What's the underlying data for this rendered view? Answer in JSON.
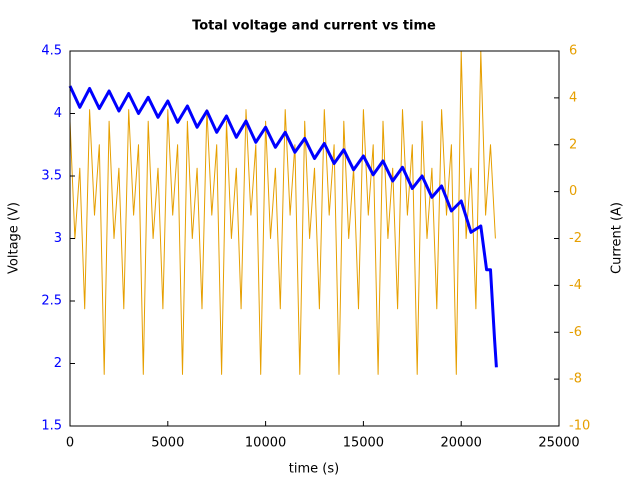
{
  "chart_data": {
    "type": "line",
    "title": "Total voltage and current vs time",
    "x_label": "time (s)",
    "y_label": "Voltage (V)",
    "y2_label": "Current (A)",
    "xlim": [
      0,
      25000
    ],
    "xticks": [
      0,
      5000,
      10000,
      15000,
      20000,
      25000
    ],
    "ylim": [
      1.5,
      4.5
    ],
    "yticks": [
      1.5,
      2,
      2.5,
      3,
      3.5,
      4,
      4.5
    ],
    "y2lim": [
      -10,
      6
    ],
    "y2ticks": [
      -10,
      -8,
      -6,
      -4,
      -2,
      0,
      2,
      4,
      6
    ],
    "series": [
      {
        "name": "Current",
        "color": "#e69f00",
        "axis": "y2",
        "x": [
          0,
          250,
          500,
          750,
          1000,
          1250,
          1500,
          1750,
          2000,
          2250,
          2500,
          2750,
          3000,
          3250,
          3500,
          3750,
          4000,
          4250,
          4500,
          4750,
          5000,
          5250,
          5500,
          5750,
          6000,
          6250,
          6500,
          6750,
          7000,
          7250,
          7500,
          7750,
          8000,
          8250,
          8500,
          8750,
          9000,
          9250,
          9500,
          9750,
          10000,
          10250,
          10500,
          10750,
          11000,
          11250,
          11500,
          11750,
          12000,
          12250,
          12500,
          12750,
          13000,
          13250,
          13500,
          13750,
          14000,
          14250,
          14500,
          14750,
          15000,
          15250,
          15500,
          15750,
          16000,
          16250,
          16500,
          16750,
          17000,
          17250,
          17500,
          17750,
          18000,
          18250,
          18500,
          18750,
          19000,
          19250,
          19500,
          19750,
          20000,
          20250,
          20500,
          20750,
          21000,
          21250,
          21500,
          21750
        ],
        "values": [
          3,
          -2,
          1,
          -5,
          3.5,
          -1,
          2,
          -7.8,
          3,
          -2,
          1,
          -5,
          3.5,
          -1,
          2,
          -7.8,
          3,
          -2,
          1,
          -5,
          3.5,
          -1,
          2,
          -7.8,
          3,
          -2,
          1,
          -5,
          3.5,
          -1,
          2,
          -7.8,
          3,
          -2,
          1,
          -5,
          3.5,
          -1,
          2,
          -7.8,
          3,
          -2,
          1,
          -5,
          3.5,
          -1,
          2,
          -7.8,
          3,
          -2,
          1,
          -5,
          3.5,
          -1,
          2,
          -7.8,
          3,
          -2,
          1,
          -5,
          3.5,
          -1,
          2,
          -7.8,
          3,
          -2,
          1,
          -5,
          3.5,
          -1,
          2,
          -7.8,
          3,
          -2,
          1,
          -5,
          3.5,
          -1,
          2,
          -7.8,
          6,
          -2,
          1,
          -5,
          6,
          -1,
          2,
          -2
        ]
      },
      {
        "name": "Voltage",
        "color": "#0000ff",
        "axis": "y",
        "x": [
          0,
          500,
          1000,
          1500,
          2000,
          2500,
          3000,
          3500,
          4000,
          4500,
          5000,
          5500,
          6000,
          6500,
          7000,
          7500,
          8000,
          8500,
          9000,
          9500,
          10000,
          10500,
          11000,
          11500,
          12000,
          12500,
          13000,
          13500,
          14000,
          14500,
          15000,
          15500,
          16000,
          16500,
          17000,
          17500,
          18000,
          18500,
          19000,
          19500,
          20000,
          20500,
          21000,
          21300,
          21500,
          21700,
          21800
        ],
        "values": [
          4.22,
          4.05,
          4.2,
          4.04,
          4.18,
          4.02,
          4.16,
          4.0,
          4.13,
          3.97,
          4.1,
          3.93,
          4.06,
          3.89,
          4.02,
          3.85,
          3.98,
          3.81,
          3.94,
          3.77,
          3.89,
          3.73,
          3.85,
          3.69,
          3.8,
          3.64,
          3.76,
          3.6,
          3.71,
          3.55,
          3.66,
          3.51,
          3.62,
          3.46,
          3.57,
          3.4,
          3.5,
          3.33,
          3.42,
          3.22,
          3.3,
          3.05,
          3.1,
          2.75,
          2.75,
          2.2,
          1.97
        ]
      }
    ]
  }
}
